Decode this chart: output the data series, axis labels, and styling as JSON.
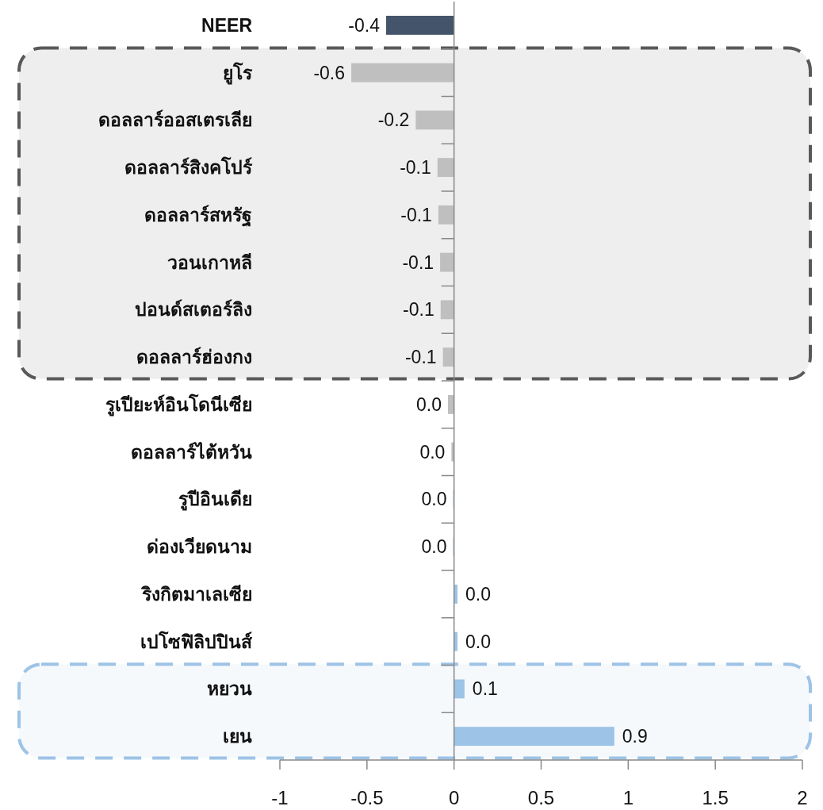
{
  "chart_data": {
    "type": "bar",
    "orientation": "horizontal",
    "categories": [
      "NEER",
      "ยูโร",
      "ดอลลาร์ออสเตรเลีย",
      "ดอลลาร์สิงคโปร์",
      "ดอลลาร์สหรัฐ",
      "วอนเกาหลี",
      "ปอนด์สเตอร์ลิง",
      "ดอลลาร์ฮ่องกง",
      "รูเปียะห์อินโดนีเซีย",
      "ดอลลาร์ไต้หวัน",
      "รูปีอินเดีย",
      "ด่องเวียดนาม",
      "ริงกิตมาเลเซีย",
      "เปโซฟิลิปปินส์",
      "หยวน",
      "เยน"
    ],
    "values": [
      -0.39,
      -0.59,
      -0.22,
      -0.095,
      -0.09,
      -0.08,
      -0.077,
      -0.064,
      -0.035,
      -0.015,
      -0.005,
      -0.005,
      0.02,
      0.02,
      0.06,
      0.92
    ],
    "colors": [
      "#44546a",
      "#bfbfbf",
      "#bfbfbf",
      "#bfbfbf",
      "#bfbfbf",
      "#bfbfbf",
      "#bfbfbf",
      "#bfbfbf",
      "#bfbfbf",
      "#bfbfbf",
      "#9dc3e6",
      "#9dc3e6",
      "#9dc3e6",
      "#9dc3e6",
      "#9dc3e6",
      "#9dc3e6"
    ],
    "value_labels": [
      "-0.4",
      "-0.6",
      "-0.2",
      "-0.1",
      "-0.1",
      "-0.1",
      "-0.1",
      "-0.1",
      "0.0",
      "0.0",
      "0.0",
      "0.0",
      "0.0",
      "0.0",
      "0.1",
      "0.9"
    ],
    "xlim": [
      -1,
      2
    ],
    "xticks": [
      -1,
      -0.5,
      0,
      0.5,
      1,
      1.5,
      2
    ],
    "bands": [
      {
        "axis": "y",
        "from": "ยูโร",
        "to": "ดอลลาร์ฮ่องกง",
        "color": "#595959"
      },
      {
        "axis": "y",
        "from": "หยวน",
        "to": "เยน",
        "color": "#9dc3e6"
      }
    ]
  }
}
